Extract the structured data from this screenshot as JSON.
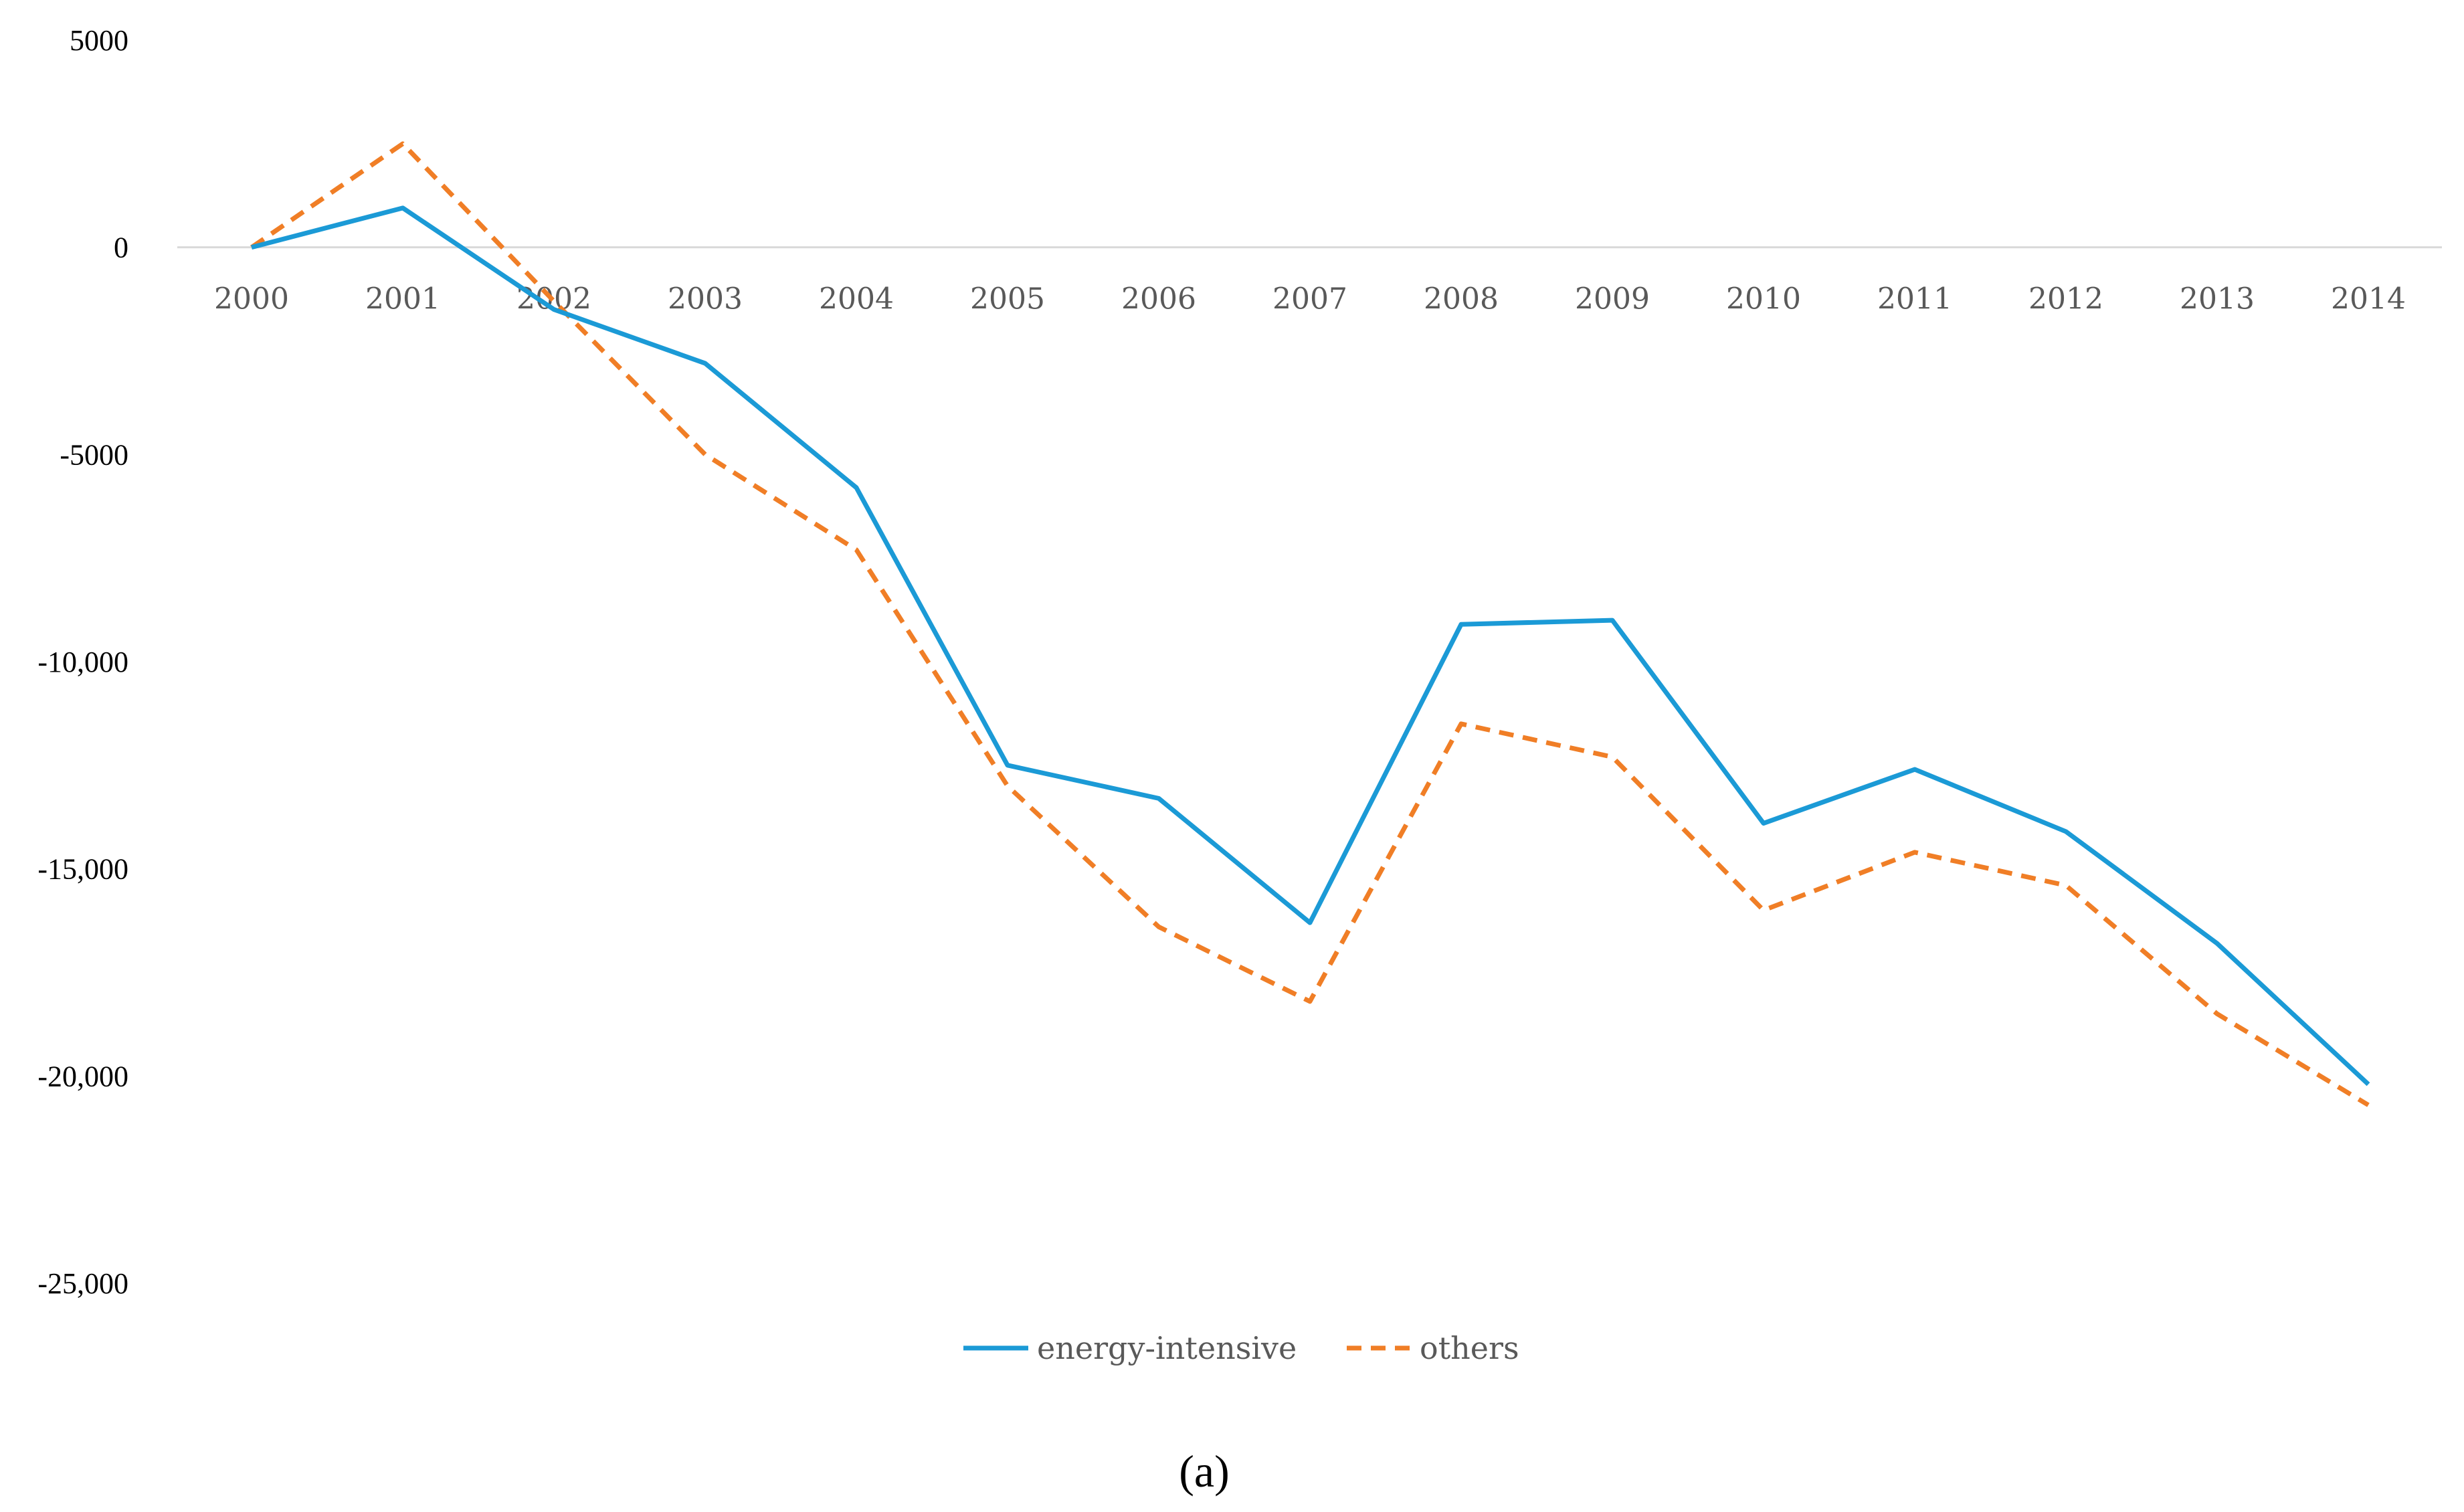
{
  "chart_data": {
    "type": "line",
    "title": "",
    "xlabel": "",
    "ylabel": "",
    "caption": "(a)",
    "categories": [
      "2000",
      "2001",
      "2002",
      "2003",
      "2004",
      "2005",
      "2006",
      "2007",
      "2008",
      "2009",
      "2010",
      "2011",
      "2012",
      "2013",
      "2014"
    ],
    "ylim": [
      -25000,
      5000
    ],
    "yticks": [
      5000,
      0,
      -5000,
      -10000,
      -15000,
      -20000,
      -25000
    ],
    "ytick_labels": [
      "5000",
      "0",
      "-5000",
      "-10,000",
      "-15,000",
      "-20,000",
      "-25,000"
    ],
    "grid": false,
    "legend_position": "bottom-center",
    "series": [
      {
        "name": "energy-intensive",
        "color": "#1B9AD6",
        "style": "solid",
        "values": [
          0,
          950,
          -1500,
          -2800,
          -5800,
          -12500,
          -13300,
          -16300,
          -9100,
          -9000,
          -13900,
          -12600,
          -14100,
          -16800,
          -20200
        ]
      },
      {
        "name": "others",
        "color": "#F07E26",
        "style": "dashed",
        "values": [
          0,
          2500,
          -1300,
          -5000,
          -7300,
          -13000,
          -16400,
          -18200,
          -11500,
          -12300,
          -16000,
          -14600,
          -15400,
          -18500,
          -20700
        ]
      }
    ]
  }
}
